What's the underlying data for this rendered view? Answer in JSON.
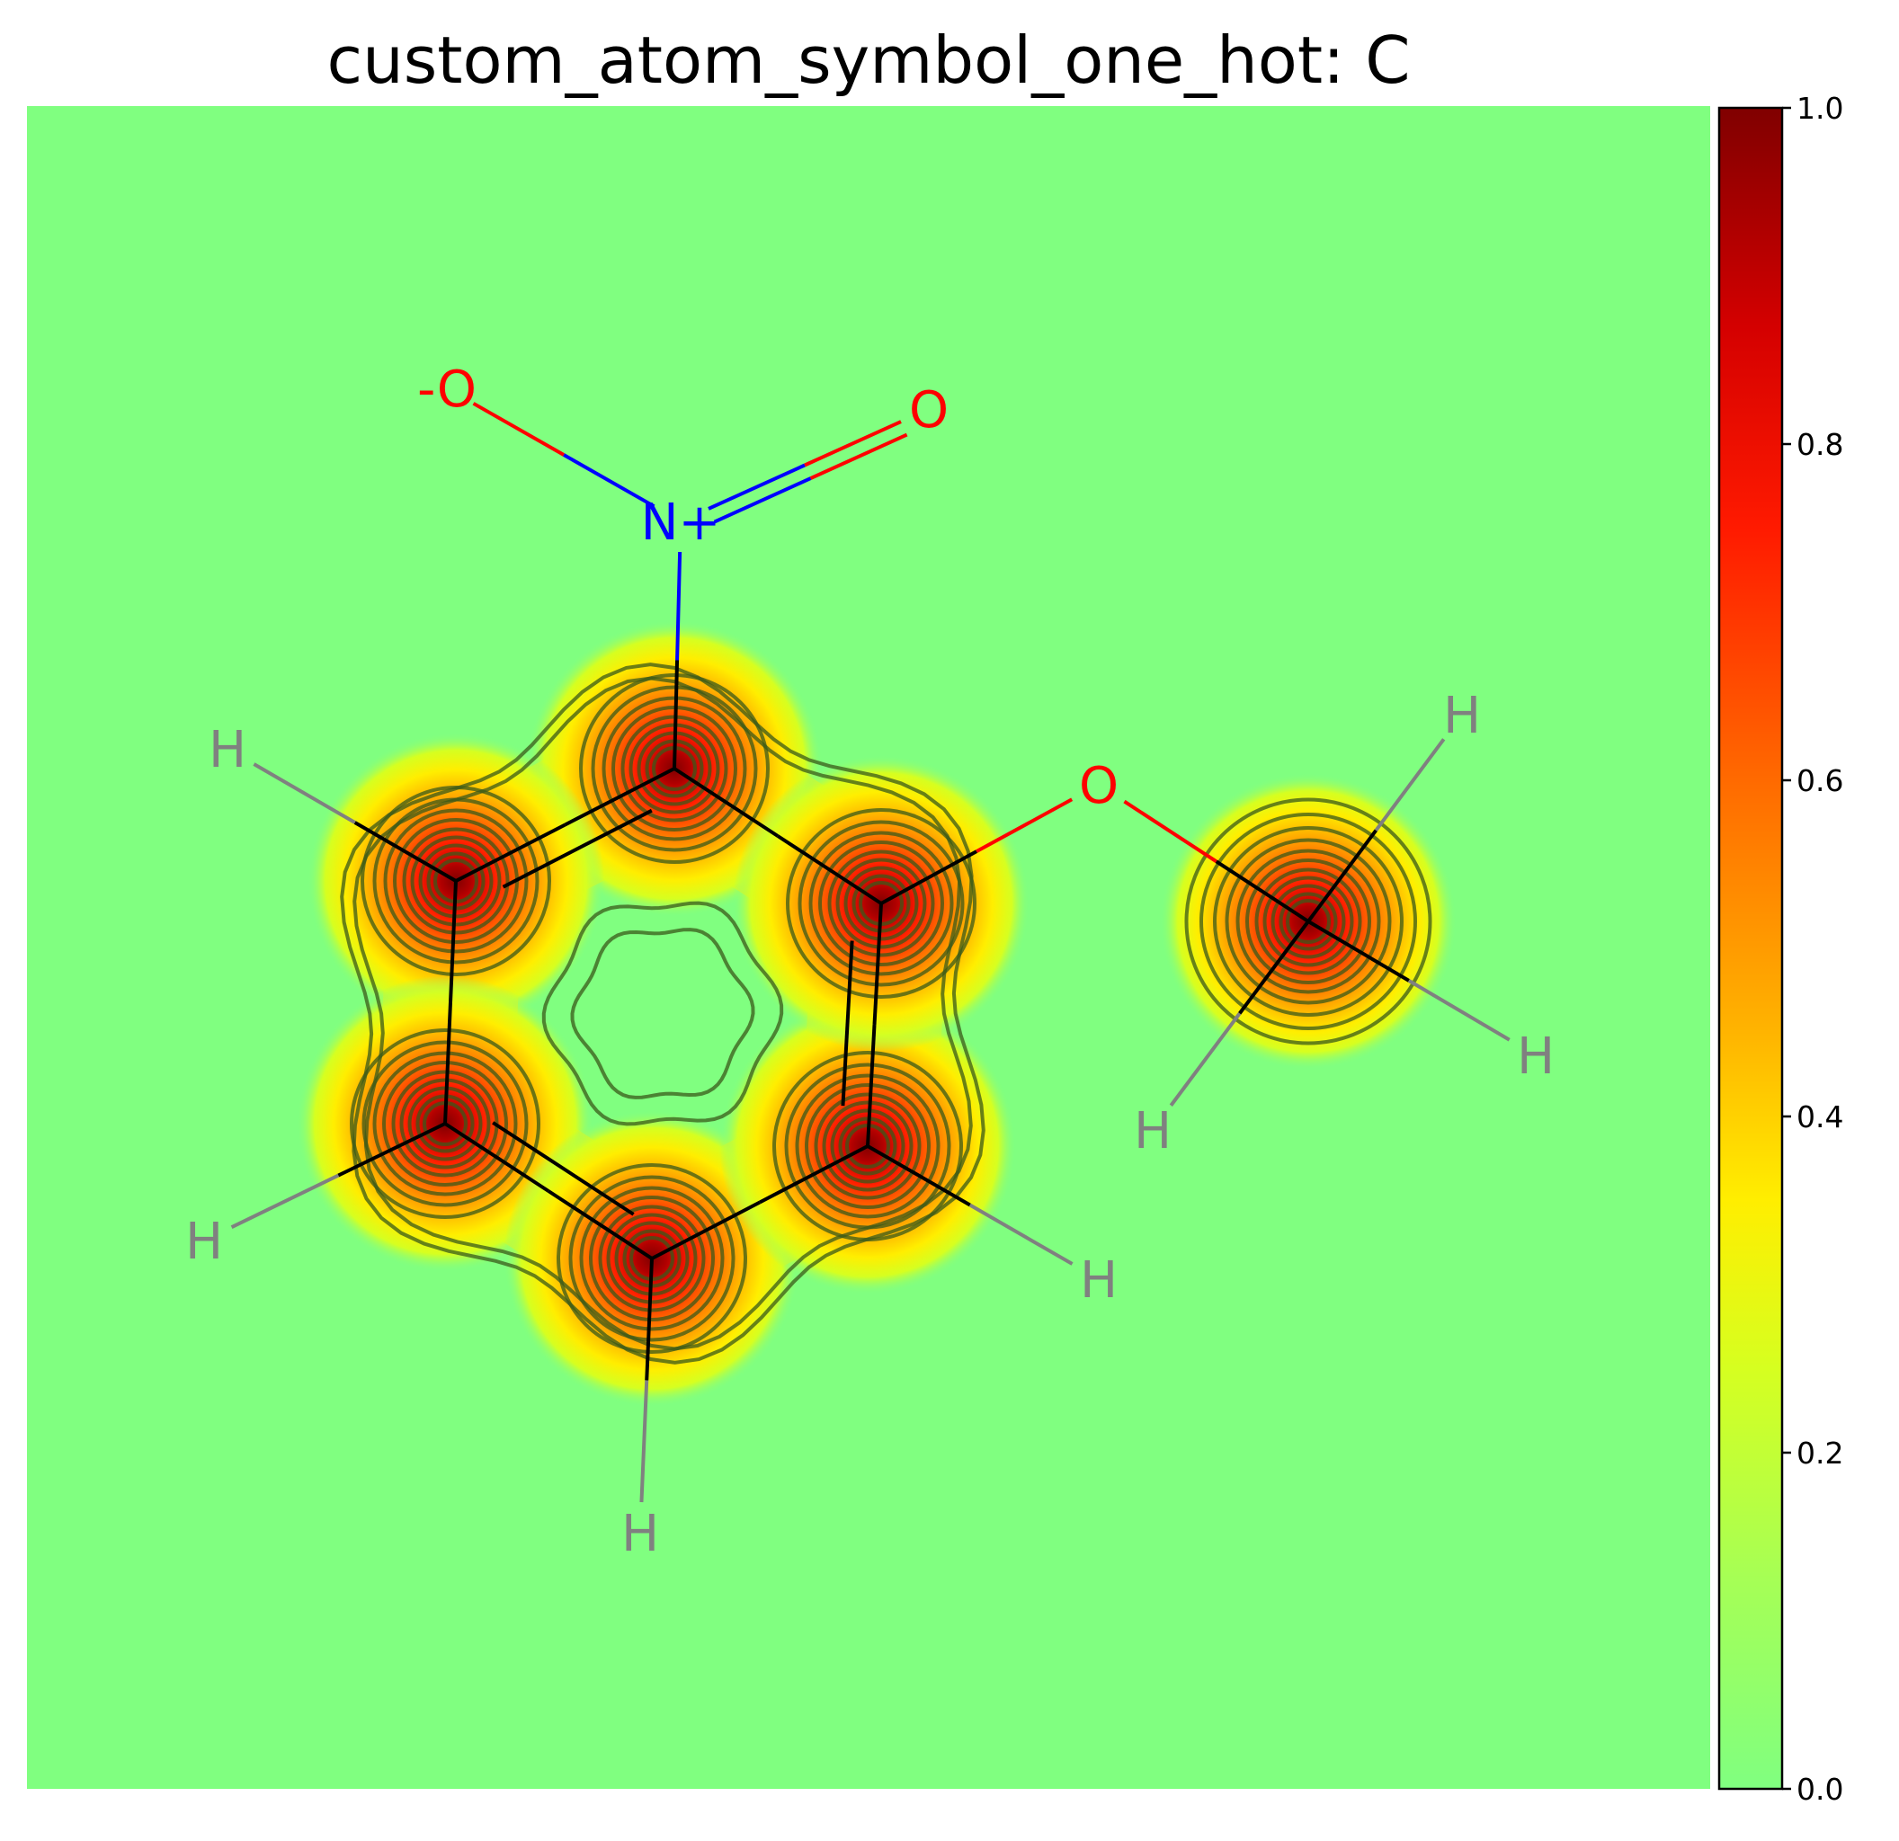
{
  "chart_data": {
    "type": "heatmap",
    "title": "custom_atom_symbol_one_hot: C",
    "colorbar": {
      "range": [
        0.0,
        1.0
      ],
      "ticks": [
        0.0,
        0.2,
        0.4,
        0.6,
        0.8,
        1.0
      ],
      "tick_labels": [
        "0.0",
        "0.2",
        "0.4",
        "0.6",
        "0.8",
        "1.0"
      ],
      "colormap": "jet-like (green at 0 to dark red at 1)"
    },
    "background_color": "#80ff80",
    "atoms": [
      {
        "id": "c1",
        "symbol": "C",
        "value": 1.0
      },
      {
        "id": "c2",
        "symbol": "C",
        "value": 1.0
      },
      {
        "id": "c3",
        "symbol": "C",
        "value": 1.0
      },
      {
        "id": "c4",
        "symbol": "C",
        "value": 1.0
      },
      {
        "id": "c5",
        "symbol": "C",
        "value": 1.0
      },
      {
        "id": "c6",
        "symbol": "C",
        "value": 1.0
      },
      {
        "id": "c7",
        "symbol": "C",
        "value": 1.0
      },
      {
        "id": "n1",
        "symbol": "N",
        "label": "N+",
        "value": 0.0,
        "color": "#0000ff"
      },
      {
        "id": "o1",
        "symbol": "O",
        "label": "-O",
        "value": 0.0,
        "color": "#ff0000"
      },
      {
        "id": "o2",
        "symbol": "O",
        "label": "O",
        "value": 0.0,
        "color": "#ff0000"
      },
      {
        "id": "o3",
        "symbol": "O",
        "label": "O",
        "value": 0.0,
        "color": "#ff0000"
      },
      {
        "id": "h1",
        "symbol": "H",
        "label": "H",
        "value": 0.0,
        "color": "#808080"
      },
      {
        "id": "h2",
        "symbol": "H",
        "label": "H",
        "value": 0.0,
        "color": "#808080"
      },
      {
        "id": "h3",
        "symbol": "H",
        "label": "H",
        "value": 0.0,
        "color": "#808080"
      },
      {
        "id": "h4",
        "symbol": "H",
        "label": "H",
        "value": 0.0,
        "color": "#808080"
      },
      {
        "id": "h5",
        "symbol": "H",
        "label": "H",
        "value": 0.0,
        "color": "#808080"
      },
      {
        "id": "h6",
        "symbol": "H",
        "label": "H",
        "value": 0.0,
        "color": "#808080"
      },
      {
        "id": "h7",
        "symbol": "H",
        "label": "H",
        "value": 0.0,
        "color": "#808080"
      }
    ],
    "bonds": [
      [
        "c1",
        "c2",
        2
      ],
      [
        "c2",
        "c3",
        1
      ],
      [
        "c3",
        "c4",
        2
      ],
      [
        "c4",
        "c5",
        1
      ],
      [
        "c5",
        "c6",
        2
      ],
      [
        "c6",
        "c1",
        1
      ],
      [
        "c1",
        "n1",
        1
      ],
      [
        "n1",
        "o1",
        1
      ],
      [
        "n1",
        "o2",
        2
      ],
      [
        "c6",
        "o3",
        1
      ],
      [
        "o3",
        "c7",
        1
      ],
      [
        "c2",
        "h1",
        1
      ],
      [
        "c3",
        "h2",
        1
      ],
      [
        "c4",
        "h3",
        1
      ],
      [
        "c5",
        "h4",
        1
      ],
      [
        "c7",
        "h5",
        1
      ],
      [
        "c7",
        "h6",
        1
      ],
      [
        "c7",
        "h7",
        1
      ]
    ]
  }
}
